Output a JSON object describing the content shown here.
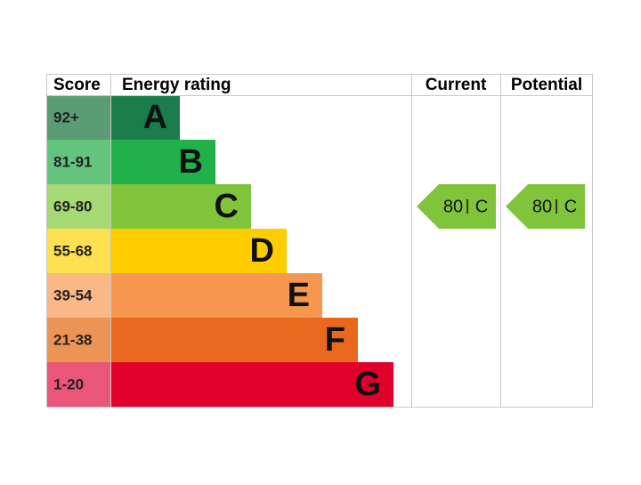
{
  "chart_data": {
    "type": "epc",
    "headers": {
      "score": "Score",
      "rating": "Energy rating",
      "current": "Current",
      "potential": "Potential"
    },
    "bands": [
      {
        "score": "92+",
        "letter": "A",
        "color": "#1b7c4c",
        "score_color": "#5a9d74"
      },
      {
        "score": "81-91",
        "letter": "B",
        "color": "#22b04b",
        "score_color": "#64c47e"
      },
      {
        "score": "69-80",
        "letter": "C",
        "color": "#80c43c",
        "score_color": "#a6d874"
      },
      {
        "score": "55-68",
        "letter": "D",
        "color": "#ffcc00",
        "score_color": "#ffe050"
      },
      {
        "score": "39-54",
        "letter": "E",
        "color": "#f7974f",
        "score_color": "#f9b886"
      },
      {
        "score": "21-38",
        "letter": "F",
        "color": "#e8691e",
        "score_color": "#ee9356"
      },
      {
        "score": "1-20",
        "letter": "G",
        "color": "#e0002c",
        "score_color": "#e95677"
      }
    ],
    "current": {
      "value": 80,
      "letter": "C",
      "band": 2
    },
    "potential": {
      "value": 80,
      "letter": "C",
      "band": 2
    }
  }
}
